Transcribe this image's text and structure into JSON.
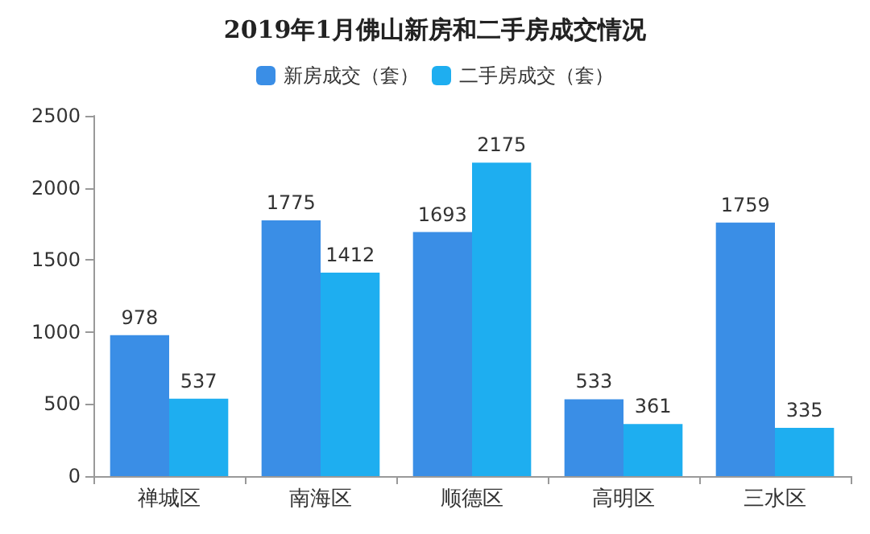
{
  "chart_data": {
    "type": "bar",
    "title": "2019年1月佛山新房和二手房成交情况",
    "categories": [
      "禅城区",
      "南海区",
      "顺德区",
      "高明区",
      "三水区"
    ],
    "series": [
      {
        "name": "新房成交（套）",
        "color": "#3a8ee6",
        "values": [
          978,
          1775,
          1693,
          533,
          1759
        ]
      },
      {
        "name": "二手房成交（套）",
        "color": "#1eaef0",
        "values": [
          537,
          1412,
          2175,
          361,
          335
        ]
      }
    ],
    "ylim": [
      0,
      2500
    ],
    "yticks": [
      0,
      500,
      1000,
      1500,
      2000,
      2500
    ],
    "grid": false,
    "legend": "top",
    "data_labels": true
  }
}
